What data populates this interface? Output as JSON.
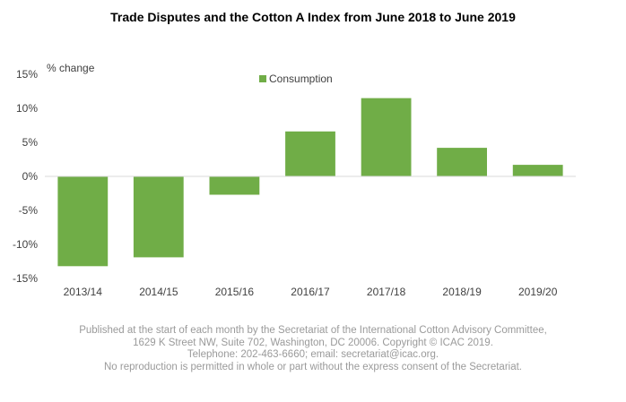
{
  "chart_data": {
    "type": "bar",
    "title": "Trade Disputes and the Cotton A Index from June 2018 to June 2019",
    "ylabel": "% change",
    "xlabel": "",
    "categories": [
      "2013/14",
      "2014/15",
      "2015/16",
      "2016/17",
      "2017/18",
      "2018/19",
      "2019/20"
    ],
    "series": [
      {
        "name": "Consumption",
        "values": [
          -13.2,
          -11.9,
          -2.7,
          6.6,
          11.5,
          4.2,
          1.7
        ]
      }
    ],
    "ylim": [
      -15,
      15
    ],
    "yticks": [
      -15,
      -10,
      -5,
      0,
      5,
      10,
      15
    ],
    "ytick_labels": [
      "-15%",
      "-10%",
      "-5%",
      "0%",
      "5%",
      "10%",
      "15%"
    ],
    "grid": false,
    "legend_position": "top",
    "colors": {
      "bar": "#70ad47",
      "axis": "#d9d9d9",
      "text": "#404040"
    }
  },
  "footer": {
    "line1": "Published at the start of each month by the Secretariat of the International Cotton Advisory Committee,",
    "line2": "1629 K Street NW, Suite 702, Washington, DC 20006. Copyright © ICAC 2019.",
    "line3": "Telephone: 202-463-6660; email: secretariat@icac.org.",
    "line4": "No reproduction is permitted in whole or part without the express consent of the Secretariat."
  }
}
